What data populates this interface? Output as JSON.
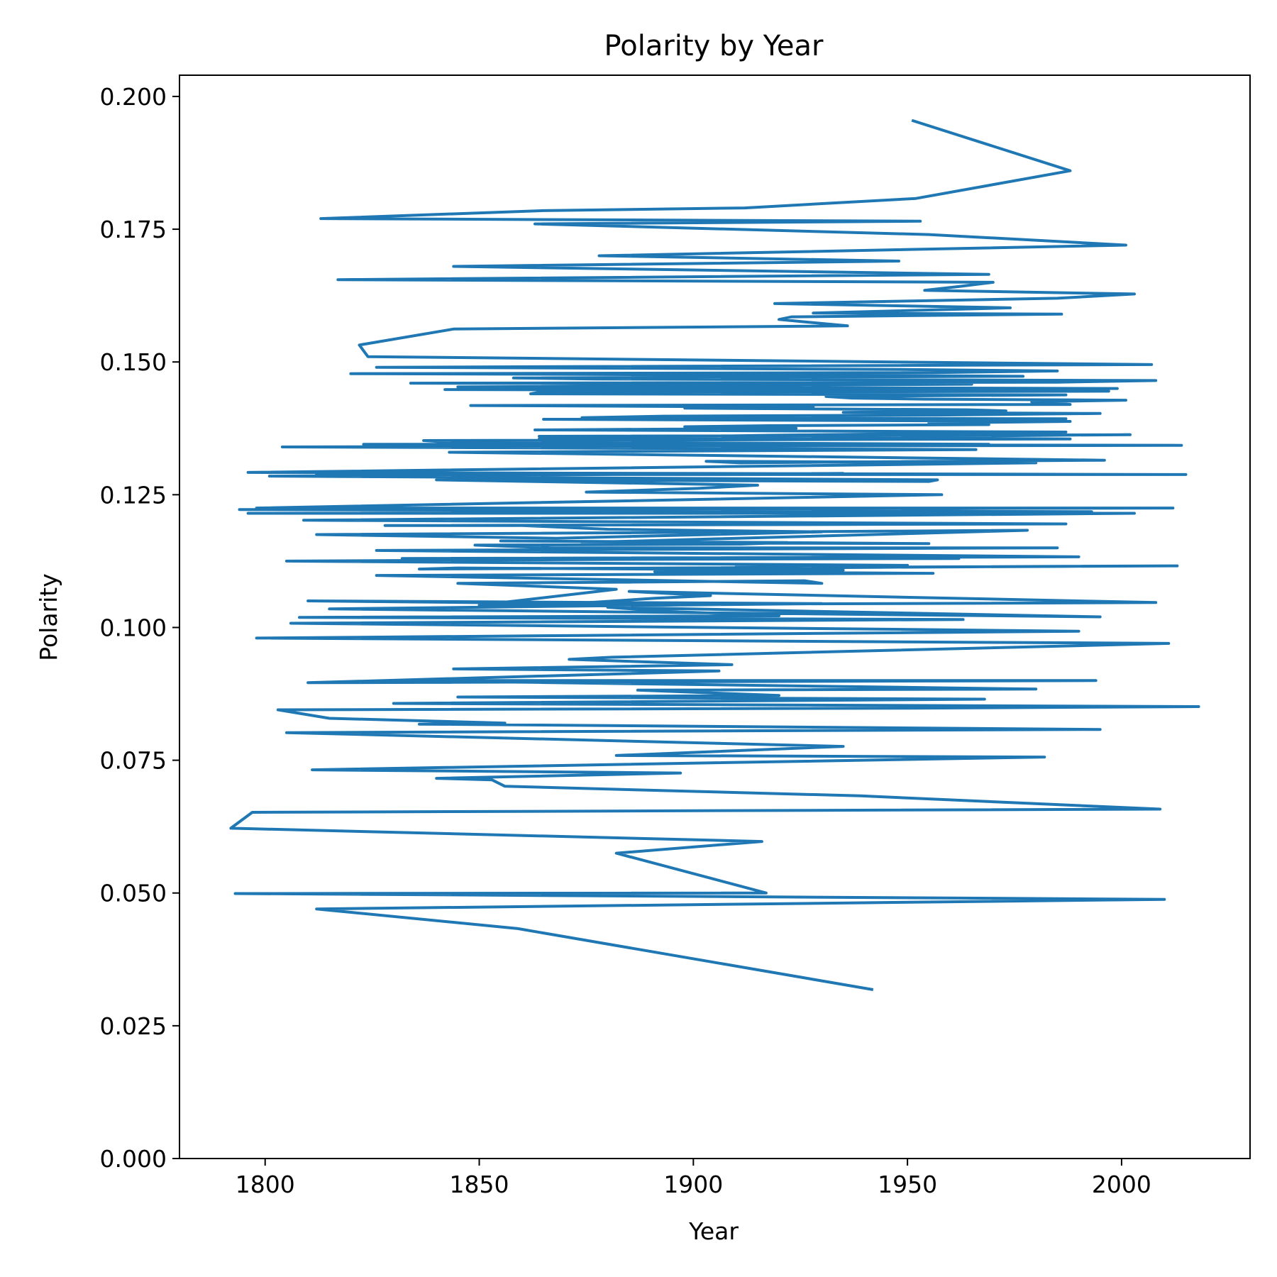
{
  "chart_data": {
    "type": "line",
    "title": "Polarity by Year",
    "xlabel": "Year",
    "ylabel": "Polarity",
    "xlim": [
      1780,
      2030
    ],
    "ylim": [
      0.0,
      0.204
    ],
    "xticks": [
      1800,
      1850,
      1900,
      1950,
      2000
    ],
    "xtick_labels": [
      "1800",
      "1850",
      "1900",
      "1950",
      "2000"
    ],
    "yticks": [
      0.0,
      0.025,
      0.05,
      0.075,
      0.1,
      0.125,
      0.15,
      0.175,
      0.2
    ],
    "ytick_labels": [
      "0.000",
      "0.025",
      "0.050",
      "0.075",
      "0.100",
      "0.125",
      "0.150",
      "0.175",
      "0.200"
    ],
    "grid": false,
    "series": [
      {
        "color": "#1f77b4",
        "x": [
          1942,
          1859,
          1812,
          2010,
          1793,
          1917,
          1882,
          1916,
          1792,
          1797,
          2009,
          1939,
          1856,
          1853,
          1840,
          1897,
          1811,
          1982,
          1882,
          1935,
          1805,
          1995,
          1836,
          1856,
          1815,
          1803,
          1950,
          2018,
          1830,
          1968,
          1845,
          1920,
          1887,
          1980,
          1830,
          1994,
          1810,
          1906,
          1844,
          1909,
          1871,
          1881,
          2011,
          1798,
          1874,
          1990,
          1806,
          1963,
          1808,
          1920,
          1895,
          1880,
          1995,
          1815,
          1870,
          1930,
          1810,
          1872,
          1891,
          1904,
          1885,
          2008,
          1850,
          1882,
          1845,
          1926,
          1930,
          1826,
          1956,
          1891,
          1914,
          2013,
          1836,
          1845,
          1935,
          1910,
          1950,
          1805,
          1875,
          1962,
          1832,
          1990,
          1826,
          1985,
          1867,
          1849,
          1911,
          1922,
          1855,
          1955,
          1874,
          1978,
          1812,
          1868,
          1930,
          1880,
          1860,
          1828,
          1987,
          1809,
          2003,
          1796,
          1982,
          1823,
          1840,
          1993,
          1794,
          2012,
          1798,
          1958,
          1875,
          1901,
          1915,
          1840,
          1955,
          1957,
          1801,
          1935,
          1812,
          2015,
          1796,
          1980,
          1903,
          1911,
          1957,
          1996,
          1843,
          1966,
          1804,
          2014,
          1823,
          1969,
          1841,
          1837,
          1988,
          1864,
          2002,
          1864,
          1918,
          1987,
          1863,
          1924,
          1898,
          1918,
          1969,
          1955,
          1988,
          1865,
          1987,
          1874,
          1893,
          1957,
          1995,
          1935,
          1973,
          1964,
          1898,
          1928,
          1848,
          1988,
          1979,
          2001,
          1954,
          1937,
          1931,
          1987,
          1862,
          1864,
          1997,
          1842,
          1999,
          1845,
          1898,
          1965,
          1834,
          1985,
          2008,
          1877,
          1858,
          1977,
          1934,
          1820,
          1956,
          1985,
          1948,
          1826,
          2007,
          1824,
          1822,
          1844,
          1936,
          1920,
          1923,
          1986,
          1928,
          1974,
          1919,
          1952,
          1985,
          2003,
          1954,
          1962,
          1970,
          1817,
          1969,
          1844,
          1948,
          1878,
          2001,
          1955,
          1863,
          1953,
          1813,
          1865,
          1912,
          1952,
          1988,
          1951,
          1799
        ]
      }
    ]
  }
}
